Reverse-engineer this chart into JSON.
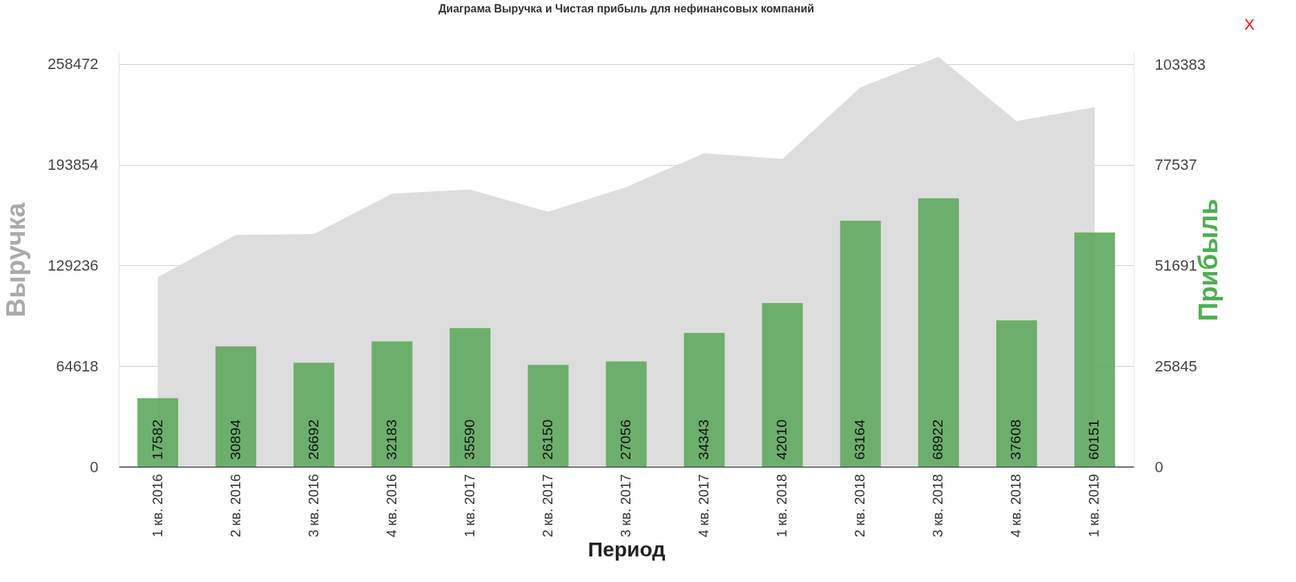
{
  "chart_data": {
    "type": "area",
    "title": "Диаграма Выручка и Чистая прибыль для нефинансовых компаний",
    "xlabel": "Период",
    "ylabel": "Выручка",
    "y2label": "Прибыль",
    "categories": [
      "1 кв. 2016",
      "2 кв. 2016",
      "3 кв. 2016",
      "4 кв. 2016",
      "1 кв. 2017",
      "2 кв. 2017",
      "3 кв. 2017",
      "4 кв. 2017",
      "1 кв. 2018",
      "2 кв. 2018",
      "3 кв. 2018",
      "4 кв. 2018",
      "1 кв. 2019"
    ],
    "series": [
      {
        "color": "#dddddd",
        "values": [
          121800,
          148800,
          149400,
          175300,
          178000,
          163700,
          179600,
          201300,
          197600,
          243600,
          263200,
          221900,
          230900
        ]
      },
      {
        "type": "bar",
        "axis": "y2",
        "color": "#5fa85f",
        "values": [
          17582,
          30894,
          26692,
          32183,
          35590,
          26150,
          27056,
          34343,
          42010,
          63164,
          68922,
          37608,
          60151
        ],
        "value_labels": [
          "17582",
          "30894",
          "26692",
          "32183",
          "35590",
          "26150",
          "27056",
          "34343",
          "42010",
          "63164",
          "68922",
          "37608",
          "60151"
        ]
      }
    ],
    "ylim": [
      0,
      266000
    ],
    "yticks": [
      0,
      64618,
      129236,
      193854,
      258472
    ],
    "y2lim": [
      0,
      106400
    ],
    "y2ticks": [
      0,
      25845,
      51691,
      77537,
      103383
    ],
    "grid": "y",
    "annotations": [
      "X"
    ]
  }
}
